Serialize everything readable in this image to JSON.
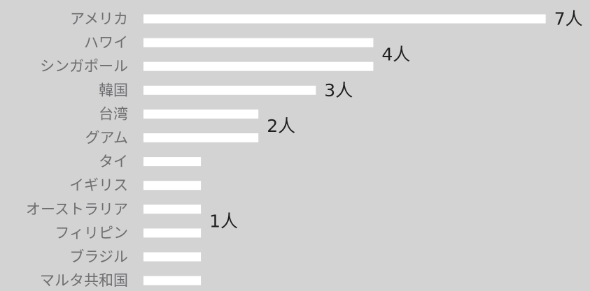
{
  "chart_data": {
    "type": "bar",
    "orientation": "horizontal",
    "categories": [
      "アメリカ",
      "ハワイ",
      "シンガポール",
      "韓国",
      "台湾",
      "グアム",
      "タイ",
      "イギリス",
      "オーストラリア",
      "フィリピン",
      "ブラジル",
      "マルタ共和国"
    ],
    "values": [
      7,
      4,
      4,
      3,
      2,
      2,
      1,
      1,
      1,
      1,
      1,
      1
    ],
    "value_labels": [
      {
        "text": "7人",
        "rows": [
          0
        ]
      },
      {
        "text": "4人",
        "rows": [
          1,
          2
        ]
      },
      {
        "text": "3人",
        "rows": [
          3
        ]
      },
      {
        "text": "2人",
        "rows": [
          4,
          5
        ]
      },
      {
        "text": "1人",
        "rows": [
          6,
          7,
          8,
          9,
          10,
          11
        ]
      }
    ],
    "title": "",
    "xlabel": "",
    "ylabel": "",
    "xlim": [
      0,
      7
    ],
    "grid": false,
    "legend": "none",
    "colors": {
      "background": "#d3d3d4",
      "bar": "#ffffff",
      "category_text": "#6e6e70",
      "value_text": "#1f1f1f"
    }
  }
}
